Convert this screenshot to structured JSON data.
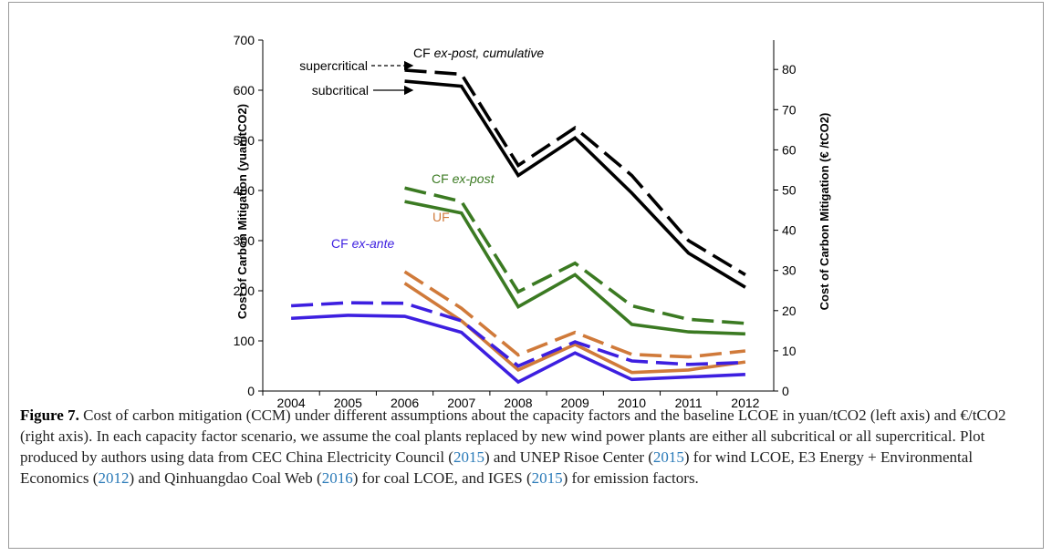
{
  "chart_data": {
    "type": "line",
    "categories": [
      "2004",
      "2005",
      "2006",
      "2007",
      "2008",
      "2009",
      "2010",
      "2011",
      "2012"
    ],
    "ylabel": "Cost of Carbon Mitigation (yuan/tCO2)",
    "y2label": "Cost of Carbon Mitigation (€ /tCO2)",
    "ylim": [
      0,
      700
    ],
    "yticks": [
      0,
      100,
      200,
      300,
      400,
      500,
      600,
      700
    ],
    "y2lim": [
      0,
      87.3
    ],
    "y2ticks": [
      0,
      10,
      20,
      30,
      40,
      50,
      60,
      70,
      80
    ],
    "series": [
      {
        "color": "#000000",
        "dashed": false,
        "values": [
          null,
          null,
          618,
          608,
          430,
          505,
          395,
          275,
          207
        ]
      },
      {
        "color": "#000000",
        "dashed": true,
        "values": [
          null,
          null,
          640,
          632,
          450,
          525,
          430,
          300,
          232
        ]
      },
      {
        "color": "#3b7a22",
        "dashed": false,
        "values": [
          null,
          null,
          378,
          355,
          168,
          232,
          133,
          118,
          114
        ]
      },
      {
        "color": "#3b7a22",
        "dashed": true,
        "values": [
          null,
          null,
          405,
          378,
          198,
          255,
          170,
          143,
          135
        ]
      },
      {
        "color": "#d07a3a",
        "dashed": false,
        "values": [
          null,
          null,
          215,
          140,
          42,
          93,
          37,
          42,
          58
        ]
      },
      {
        "color": "#d07a3a",
        "dashed": true,
        "values": [
          null,
          null,
          238,
          165,
          72,
          117,
          73,
          68,
          80
        ]
      },
      {
        "color": "#3d1fe0",
        "dashed": false,
        "values": [
          145,
          151,
          149,
          117,
          18,
          76,
          23,
          28,
          33
        ]
      },
      {
        "color": "#3d1fe0",
        "dashed": true,
        "values": [
          170,
          176,
          175,
          140,
          50,
          98,
          60,
          53,
          57
        ]
      }
    ],
    "annotations": {
      "cumulative": [
        "CF",
        "ex-post, cumulative"
      ],
      "expost": [
        "CF",
        "ex-post"
      ],
      "uf": "UF",
      "exante": [
        "CF",
        "ex-ante"
      ],
      "supercritical": "supercritical",
      "subcritical": "subcritical"
    },
    "caption": {
      "label": "Figure 7.",
      "parts": [
        "Cost of carbon mitigation (CCM) under different assumptions about the capacity factors and the baseline LCOE in yuan/tCO2 (left axis) and €/tCO2 (right axis). In each capacity factor scenario, we assume the coal plants replaced by new wind power plants are either all subcritical or all supercritical. Plot produced by authors using data from CEC China Electricity Council (",
        "2015",
        ") and UNEP Risoe Center (",
        "2015",
        ") for wind LCOE, E3 Energy + Environmental Economics (",
        "2012",
        ") and Qinhuangdao Coal Web (",
        "2016",
        ") for coal LCOE, and IGES (",
        "2015",
        ") for emission factors."
      ]
    }
  }
}
